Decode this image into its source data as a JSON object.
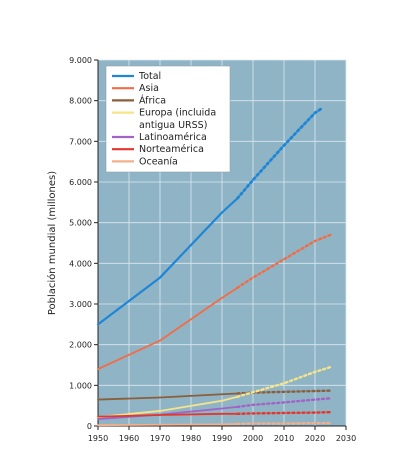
{
  "chart_data": {
    "type": "line",
    "ylabel": "Población mundial (millones)",
    "xlim": [
      1950,
      2030
    ],
    "ylim": [
      0,
      9000
    ],
    "x_ticks": [
      "1950",
      "1960",
      "1970",
      "1980",
      "1990",
      "2000",
      "2010",
      "2020",
      "2030"
    ],
    "y_ticks": [
      "0",
      "1.000",
      "2.000",
      "3.000",
      "4.000",
      "5.000",
      "6.000",
      "7.000",
      "8.000",
      "9.000"
    ],
    "grid": true,
    "legend_position": "top-left",
    "plot_background": "#8fb4c6",
    "projection_style": "dotted",
    "series": [
      {
        "name": "Total",
        "color": "#1f86d6",
        "x": [
          1950,
          1970,
          1990,
          1995,
          2000,
          2010,
          2020,
          2022
        ],
        "y": [
          2500,
          3650,
          5250,
          5600,
          6050,
          6900,
          7700,
          7800
        ],
        "projection_from": 1995
      },
      {
        "name": "Asia",
        "color": "#f26c46",
        "x": [
          1950,
          1970,
          1990,
          1995,
          2000,
          2010,
          2020,
          2025
        ],
        "y": [
          1400,
          2100,
          3150,
          3400,
          3650,
          4100,
          4550,
          4700
        ],
        "projection_from": 1995
      },
      {
        "name": "África",
        "color": "#8b5e3c",
        "x": [
          1950,
          1970,
          1990,
          1995,
          2000,
          2010,
          2020,
          2025
        ],
        "y": [
          650,
          700,
          780,
          800,
          820,
          840,
          860,
          870
        ],
        "projection_from": 1995
      },
      {
        "name": "Europa (incluida antigua URSS)",
        "color": "#f6e48a",
        "x": [
          1950,
          1970,
          1990,
          1995,
          2000,
          2010,
          2020,
          2025
        ],
        "y": [
          220,
          370,
          620,
          720,
          830,
          1050,
          1330,
          1450
        ],
        "projection_from": 1995
      },
      {
        "name": "Latinoamérica",
        "color": "#a263c6",
        "x": [
          1950,
          1970,
          1990,
          1995,
          2000,
          2010,
          2020,
          2025
        ],
        "y": [
          170,
          280,
          430,
          470,
          520,
          580,
          650,
          680
        ],
        "projection_from": 1995
      },
      {
        "name": "Norteamérica",
        "color": "#e5362a",
        "x": [
          1950,
          1970,
          1990,
          1995,
          2000,
          2010,
          2020,
          2025
        ],
        "y": [
          230,
          270,
          300,
          300,
          310,
          320,
          330,
          340
        ],
        "projection_from": 1995
      },
      {
        "name": "Oceanía",
        "color": "#f4b08a",
        "x": [
          1950,
          1970,
          1990,
          1995,
          2000,
          2010,
          2020,
          2025
        ],
        "y": [
          20,
          30,
          40,
          50,
          60,
          60,
          70,
          70
        ],
        "projection_from": 1995
      }
    ],
    "legend": [
      "Total",
      "Asia",
      "África",
      "Europa (incluida",
      "antigua URSS)",
      "Latinoamérica",
      "Norteamérica",
      "Oceanía"
    ]
  }
}
